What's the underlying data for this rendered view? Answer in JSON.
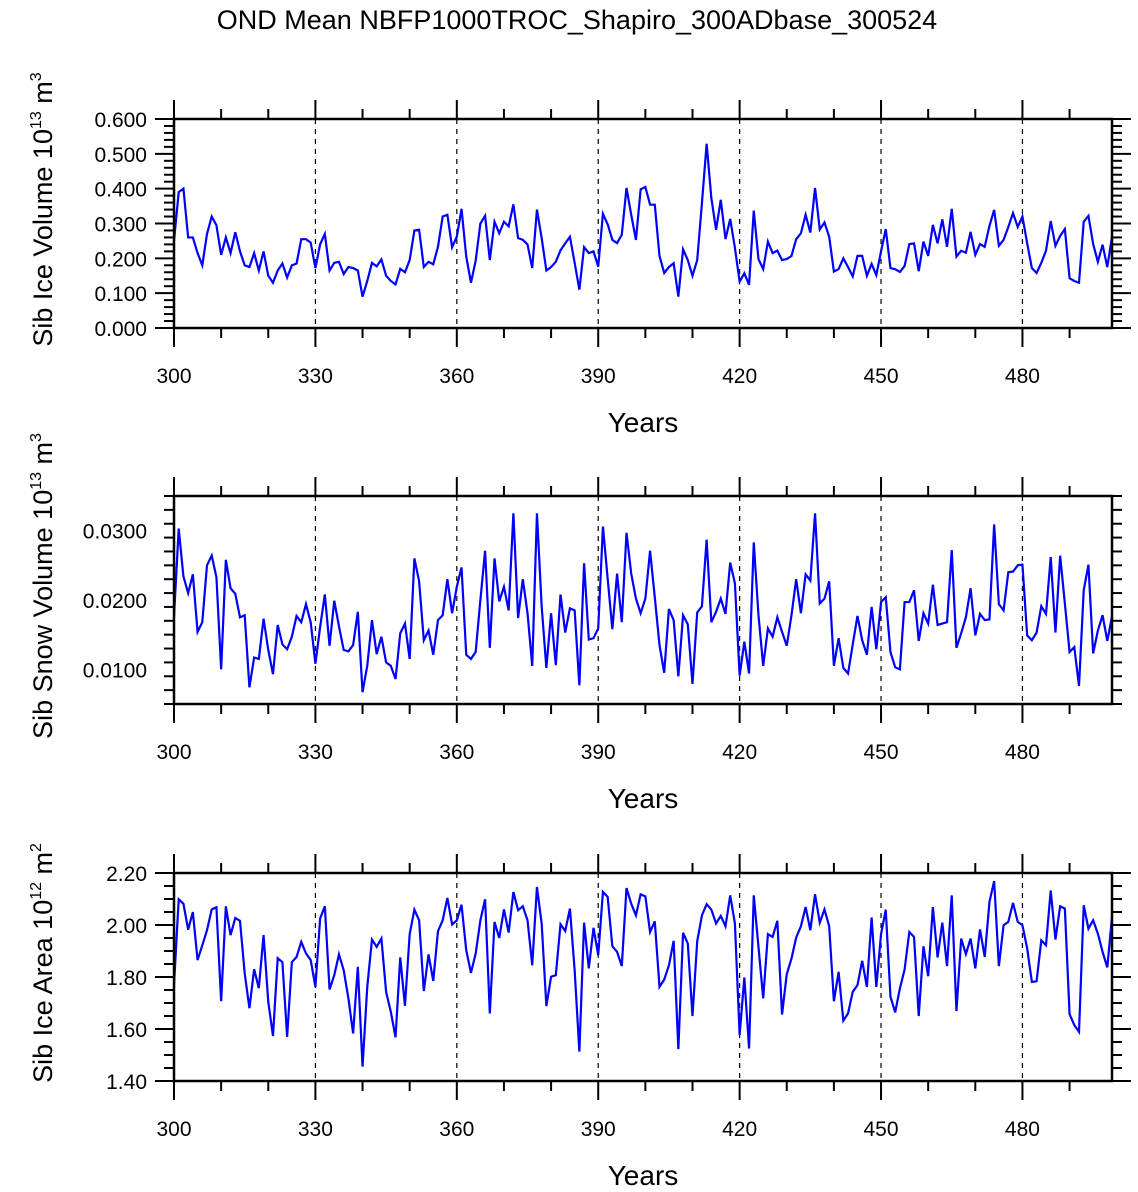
{
  "title": "OND Mean NBFP1000TROC_Shapiro_300ADbase_300524",
  "chart_data": [
    {
      "type": "line",
      "ylabel": {
        "text": "Sib Ice Volume 10",
        "exponent": "13",
        "unit": " m",
        "unit_exponent": "3"
      },
      "xlabel": "Years",
      "xlim": [
        300,
        499
      ],
      "ylim": [
        0.0,
        0.6
      ],
      "xticks": [
        300,
        330,
        360,
        390,
        420,
        450,
        480
      ],
      "xtick_labels": [
        "300",
        "330",
        "360",
        "390",
        "420",
        "450",
        "480"
      ],
      "x_minor_step": 10,
      "yticks": [
        0.0,
        0.1,
        0.2,
        0.3,
        0.4,
        0.5,
        0.6
      ],
      "ytick_labels": [
        "0.000",
        "0.100",
        "0.200",
        "0.300",
        "0.400",
        "0.500",
        "0.600"
      ],
      "y_minor_step": 0.02,
      "grid": "vertical dashed lines at major x ticks",
      "line_color": "#0000ff",
      "x_start": 300,
      "x_step": 1,
      "values": [
        0.25,
        0.39,
        0.4,
        0.26,
        0.26,
        0.215,
        0.18,
        0.27,
        0.32,
        0.295,
        0.21,
        0.26,
        0.215,
        0.275,
        0.22,
        0.18,
        0.175,
        0.215,
        0.165,
        0.22,
        0.15,
        0.13,
        0.165,
        0.185,
        0.145,
        0.18,
        0.185,
        0.255,
        0.255,
        0.245,
        0.172,
        0.24,
        0.27,
        0.165,
        0.187,
        0.19,
        0.155,
        0.175,
        0.172,
        0.165,
        0.09,
        0.135,
        0.187,
        0.177,
        0.197,
        0.15,
        0.135,
        0.125,
        0.17,
        0.16,
        0.195,
        0.28,
        0.282,
        0.175,
        0.19,
        0.183,
        0.233,
        0.32,
        0.325,
        0.232,
        0.262,
        0.342,
        0.205,
        0.13,
        0.193,
        0.3,
        0.322,
        0.195,
        0.305,
        0.272,
        0.305,
        0.292,
        0.355,
        0.258,
        0.253,
        0.24,
        0.172,
        0.34,
        0.258,
        0.165,
        0.175,
        0.19,
        0.223,
        0.243,
        0.262,
        0.187,
        0.11,
        0.232,
        0.215,
        0.22,
        0.176,
        0.328,
        0.298,
        0.253,
        0.244,
        0.268,
        0.402,
        0.325,
        0.253,
        0.398,
        0.405,
        0.354,
        0.354,
        0.207,
        0.158,
        0.175,
        0.186,
        0.09,
        0.226,
        0.195,
        0.15,
        0.195,
        0.358,
        0.529,
        0.373,
        0.282,
        0.368,
        0.255,
        0.313,
        0.23,
        0.133,
        0.157,
        0.124,
        0.337,
        0.198,
        0.169,
        0.248,
        0.215,
        0.222,
        0.195,
        0.198,
        0.207,
        0.255,
        0.272,
        0.325,
        0.274,
        0.402,
        0.283,
        0.303,
        0.262,
        0.162,
        0.169,
        0.2,
        0.175,
        0.148,
        0.207,
        0.207,
        0.15,
        0.184,
        0.152,
        0.22,
        0.284,
        0.172,
        0.169,
        0.161,
        0.178,
        0.241,
        0.243,
        0.163,
        0.248,
        0.207,
        0.296,
        0.243,
        0.312,
        0.233,
        0.342,
        0.205,
        0.222,
        0.216,
        0.276,
        0.21,
        0.241,
        0.233,
        0.293,
        0.339,
        0.236,
        0.253,
        0.29,
        0.33,
        0.29,
        0.32,
        0.243,
        0.172,
        0.158,
        0.187,
        0.222,
        0.307,
        0.236,
        0.264,
        0.284,
        0.143,
        0.135,
        0.13,
        0.305,
        0.322,
        0.241,
        0.19,
        0.239,
        0.175,
        0.262
      ]
    },
    {
      "type": "line",
      "ylabel": {
        "text": "Sib Snow Volume 10",
        "exponent": "13",
        "unit": " m",
        "unit_exponent": "3"
      },
      "xlabel": "Years",
      "xlim": [
        300,
        499
      ],
      "ylim": [
        0.005,
        0.035
      ],
      "xticks": [
        300,
        330,
        360,
        390,
        420,
        450,
        480
      ],
      "xtick_labels": [
        "300",
        "330",
        "360",
        "390",
        "420",
        "450",
        "480"
      ],
      "x_minor_step": 10,
      "yticks": [
        0.01,
        0.02,
        0.03
      ],
      "ytick_labels": [
        "0.0100",
        "0.0200",
        "0.0300"
      ],
      "y_minor_step": 0.002,
      "grid": "vertical dashed lines at major x ticks",
      "line_color": "#0000ff",
      "x_start": 300,
      "x_step": 1,
      "values": [
        0.0176,
        0.0303,
        0.0234,
        0.021,
        0.0237,
        0.0154,
        0.0168,
        0.025,
        0.0264,
        0.0233,
        0.01,
        0.0258,
        0.0217,
        0.0209,
        0.0175,
        0.0178,
        0.0074,
        0.0117,
        0.0115,
        0.0173,
        0.0128,
        0.0093,
        0.0164,
        0.0136,
        0.0129,
        0.0147,
        0.0177,
        0.0168,
        0.0194,
        0.0168,
        0.0108,
        0.0161,
        0.0208,
        0.0134,
        0.0199,
        0.0162,
        0.0128,
        0.0126,
        0.0135,
        0.0183,
        0.0067,
        0.0105,
        0.0171,
        0.0122,
        0.0147,
        0.011,
        0.0105,
        0.0086,
        0.0152,
        0.0166,
        0.0115,
        0.026,
        0.0227,
        0.0142,
        0.0156,
        0.0121,
        0.0171,
        0.0178,
        0.023,
        0.0181,
        0.0219,
        0.0247,
        0.0121,
        0.0115,
        0.0125,
        0.02,
        0.0271,
        0.0131,
        0.026,
        0.0198,
        0.0219,
        0.0185,
        0.0325,
        0.0174,
        0.023,
        0.0181,
        0.0105,
        0.0325,
        0.0191,
        0.0102,
        0.0181,
        0.0106,
        0.0208,
        0.0153,
        0.0188,
        0.0185,
        0.0077,
        0.0253,
        0.0143,
        0.0145,
        0.0159,
        0.0306,
        0.0231,
        0.0158,
        0.0238,
        0.0168,
        0.0297,
        0.0238,
        0.0202,
        0.0181,
        0.0202,
        0.0271,
        0.0204,
        0.0135,
        0.0095,
        0.0187,
        0.0171,
        0.009,
        0.0178,
        0.0165,
        0.0079,
        0.0182,
        0.0191,
        0.0287,
        0.0168,
        0.0183,
        0.0202,
        0.018,
        0.0254,
        0.0224,
        0.0091,
        0.014,
        0.0094,
        0.0283,
        0.0178,
        0.0105,
        0.0159,
        0.0147,
        0.0175,
        0.0154,
        0.0134,
        0.0178,
        0.023,
        0.0181,
        0.0237,
        0.0228,
        0.0325,
        0.0195,
        0.0202,
        0.0227,
        0.0105,
        0.0145,
        0.0102,
        0.0094,
        0.0136,
        0.0177,
        0.0142,
        0.0121,
        0.019,
        0.0129,
        0.0197,
        0.0204,
        0.0125,
        0.0103,
        0.01,
        0.0197,
        0.0197,
        0.0214,
        0.0141,
        0.0181,
        0.0166,
        0.0222,
        0.0164,
        0.0166,
        0.0168,
        0.0272,
        0.0131,
        0.0152,
        0.0175,
        0.0217,
        0.0149,
        0.018,
        0.0171,
        0.0172,
        0.0309,
        0.0194,
        0.0185,
        0.024,
        0.0241,
        0.025,
        0.0251,
        0.0149,
        0.0142,
        0.0153,
        0.0191,
        0.018,
        0.0262,
        0.0153,
        0.0264,
        0.0195,
        0.0125,
        0.0132,
        0.0076,
        0.0214,
        0.0251,
        0.0123,
        0.0156,
        0.0178,
        0.0141,
        0.0176
      ]
    },
    {
      "type": "line",
      "ylabel": {
        "text": "Sib Ice Area 10",
        "exponent": "12",
        "unit": " m",
        "unit_exponent": "2"
      },
      "xlabel": "Years",
      "xlim": [
        300,
        499
      ],
      "ylim": [
        1.4,
        2.2
      ],
      "xticks": [
        300,
        330,
        360,
        390,
        420,
        450,
        480
      ],
      "xtick_labels": [
        "300",
        "330",
        "360",
        "390",
        "420",
        "450",
        "480"
      ],
      "x_minor_step": 10,
      "yticks": [
        1.4,
        1.6,
        1.8,
        2.0,
        2.2
      ],
      "ytick_labels": [
        "1.40",
        "1.60",
        "1.80",
        "2.00",
        "2.20"
      ],
      "y_minor_step": 0.05,
      "grid": "vertical dashed lines at major x ticks",
      "line_color": "#0000ff",
      "x_start": 300,
      "x_step": 1,
      "values": [
        1.769,
        2.099,
        2.082,
        1.982,
        2.05,
        1.865,
        1.922,
        1.98,
        2.06,
        2.068,
        1.707,
        2.072,
        1.961,
        2.027,
        2.016,
        1.814,
        1.68,
        1.83,
        1.757,
        1.961,
        1.705,
        1.573,
        1.872,
        1.857,
        1.57,
        1.857,
        1.877,
        1.935,
        1.891,
        1.865,
        1.762,
        2.025,
        2.072,
        1.752,
        1.807,
        1.887,
        1.826,
        1.718,
        1.583,
        1.839,
        1.455,
        1.762,
        1.944,
        1.916,
        1.948,
        1.743,
        1.666,
        1.568,
        1.875,
        1.689,
        1.965,
        2.059,
        2.018,
        1.746,
        1.887,
        1.785,
        1.976,
        2.018,
        2.104,
        2.002,
        2.018,
        2.078,
        1.903,
        1.816,
        1.89,
        2.018,
        2.099,
        1.66,
        2.012,
        1.95,
        2.06,
        1.971,
        2.127,
        2.057,
        2.072,
        2.018,
        1.845,
        2.146,
        2.006,
        1.688,
        1.801,
        1.807,
        2.003,
        1.977,
        2.063,
        1.826,
        1.513,
        2.009,
        1.833,
        1.989,
        1.884,
        2.127,
        2.108,
        1.918,
        1.897,
        1.842,
        2.142,
        2.082,
        2.037,
        2.118,
        2.11,
        1.973,
        2.014,
        1.762,
        1.79,
        1.845,
        1.939,
        1.523,
        1.97,
        1.929,
        1.65,
        1.938,
        2.037,
        2.08,
        2.059,
        2.006,
        2.035,
        1.995,
        2.114,
        2.006,
        1.577,
        1.798,
        1.525,
        2.114,
        1.916,
        1.718,
        1.965,
        1.954,
        2.016,
        1.656,
        1.811,
        1.871,
        1.952,
        1.995,
        2.069,
        1.98,
        2.118,
        2.009,
        2.06,
        1.995,
        1.707,
        1.82,
        1.632,
        1.66,
        1.743,
        1.769,
        1.862,
        1.762,
        2.029,
        1.762,
        1.965,
        2.059,
        1.724,
        1.664,
        1.756,
        1.829,
        1.973,
        1.954,
        1.65,
        1.918,
        1.803,
        2.069,
        1.875,
        2.009,
        1.842,
        2.114,
        1.669,
        1.948,
        1.888,
        1.948,
        1.833,
        1.983,
        1.877,
        2.089,
        2.169,
        1.842,
        1.999,
        2.012,
        2.085,
        2.012,
        1.999,
        1.91,
        1.781,
        1.784,
        1.941,
        1.922,
        2.133,
        1.944,
        2.072,
        2.063,
        1.657,
        1.615,
        1.589,
        2.076,
        1.986,
        2.018,
        1.967,
        1.897,
        1.837,
        2.031
      ]
    }
  ]
}
